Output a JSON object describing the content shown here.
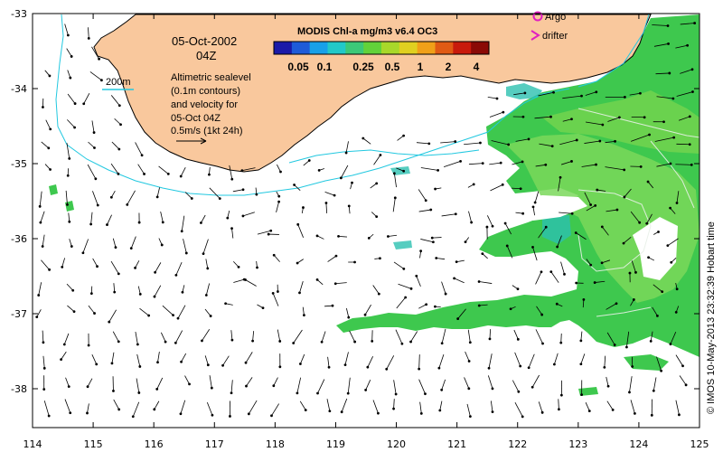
{
  "map": {
    "date": "05-Oct-2002",
    "time": "04Z",
    "colorbar_title": "MODIS Chl-a mg/m3 v6.4 OC3",
    "colorbar_ticks": [
      "0.05",
      "0.1",
      "0.25",
      "0.5",
      "1",
      "2",
      "4"
    ],
    "colorbar_colors": [
      "#1a1aa8",
      "#1e5bd8",
      "#18a0e8",
      "#22c8c8",
      "#3cc878",
      "#62d23a",
      "#a8d82a",
      "#e0d020",
      "#f0a018",
      "#e05a14",
      "#c81a0c",
      "#8a0a06"
    ],
    "depth_label": "200m",
    "altimetry_lines": [
      "Altimetric sealevel",
      "(0.1m contours)",
      "and velocity for",
      "05-Oct 04Z",
      "0.5m/s (1kt 24h)"
    ],
    "legend_argo": "Argo",
    "legend_drifter": "drifter",
    "credit": "© IMOS 10-May-2013 23:32:39 Hobart time",
    "x_ticks": [
      "114",
      "115",
      "116",
      "117",
      "118",
      "119",
      "120",
      "121",
      "122",
      "123",
      "124",
      "125"
    ],
    "y_ticks": [
      "-33",
      "-34",
      "-35",
      "-36",
      "-37",
      "-38"
    ],
    "colors": {
      "land": "#f9c89d",
      "coast": "#000000",
      "isobath": "#22c8e0",
      "chl_green": "#3ec84e",
      "chl_light": "#7ad85a",
      "chl_cyan": "#2cc0b0",
      "argo": "#e020c0",
      "drifter": "#e020c0"
    }
  }
}
